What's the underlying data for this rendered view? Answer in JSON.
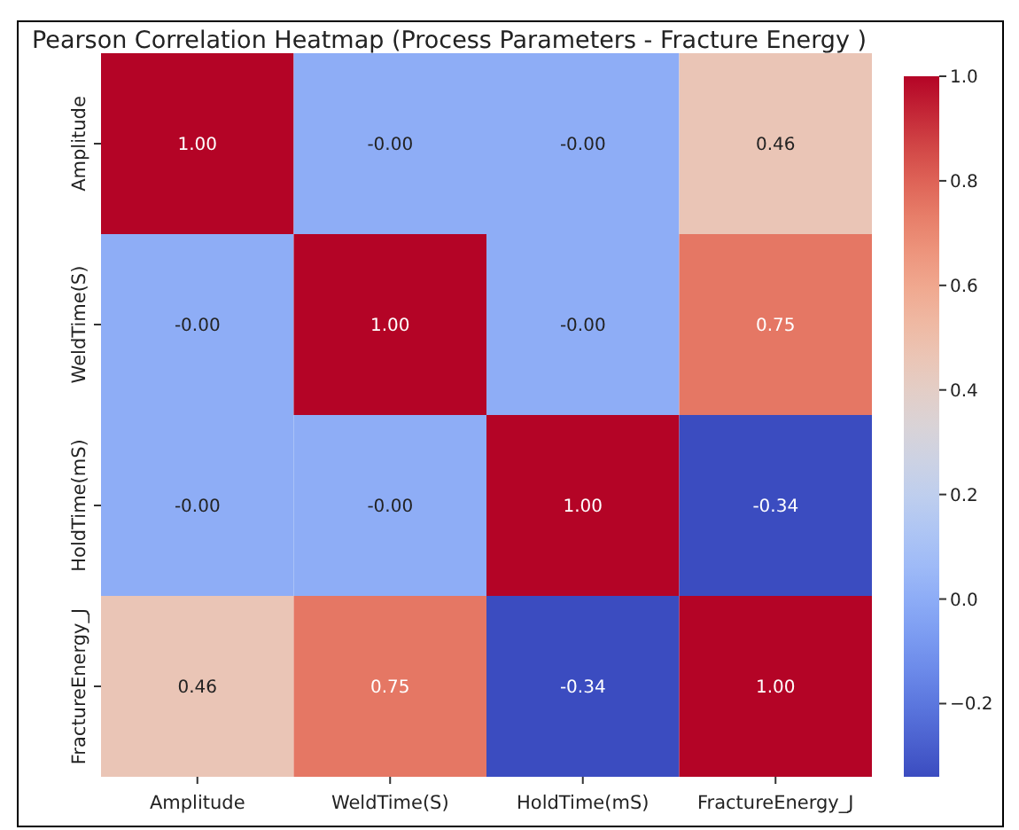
{
  "chart_data": {
    "type": "heatmap",
    "title": "Pearson Correlation Heatmap (Process Parameters - Fracture Energy  )",
    "categories": [
      "Amplitude",
      "WeldTime(S)",
      "HoldTime(mS)",
      "FractureEnergy_J"
    ],
    "y_categories": [
      "Amplitude",
      "WeldTime(S)",
      "HoldTime(mS)",
      "FractureEnergy_J"
    ],
    "cells": [
      [
        1.0,
        0,
        0,
        0.46
      ],
      [
        0,
        1.0,
        0,
        0.75
      ],
      [
        0,
        0,
        1.0,
        -0.34
      ],
      [
        0.46,
        0.75,
        -0.34,
        1.0
      ]
    ],
    "cell_labels": [
      [
        "1.00",
        "-0.00",
        "-0.00",
        "0.46"
      ],
      [
        "-0.00",
        "1.00",
        "-0.00",
        "0.75"
      ],
      [
        "-0.00",
        "-0.00",
        "1.00",
        "-0.34"
      ],
      [
        "0.46",
        "0.75",
        "-0.34",
        "1.00"
      ]
    ],
    "clim": [
      -0.34,
      1.0
    ],
    "cticks": [
      {
        "value": -0.2,
        "label": "−0.2"
      },
      {
        "value": 0,
        "label": "0.0"
      },
      {
        "value": 0.2,
        "label": "0.2"
      },
      {
        "value": 0.4,
        "label": "0.4"
      },
      {
        "value": 0.6,
        "label": "0.6"
      },
      {
        "value": 0.8,
        "label": "0.8"
      },
      {
        "value": 1.0,
        "label": "1.0"
      }
    ]
  }
}
